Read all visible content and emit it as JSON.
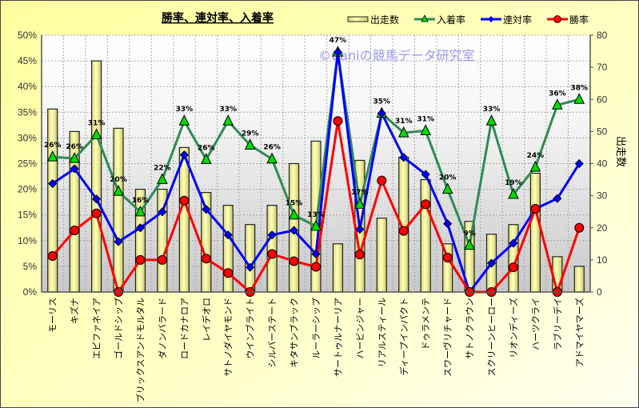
{
  "chart_data": {
    "type": "bar+line",
    "title": "勝率、連対率、入着率",
    "watermark": "©Caniの競馬データ研究室",
    "y_left": {
      "ylim": [
        0,
        50
      ],
      "ticks": [
        "0%",
        "5%",
        "10%",
        "15%",
        "20%",
        "25%",
        "30%",
        "35%",
        "40%",
        "45%",
        "50%"
      ]
    },
    "y_right": {
      "label": "出走数",
      "ylim": [
        0,
        80
      ],
      "ticks": [
        "0",
        "10",
        "20",
        "30",
        "40",
        "50",
        "60",
        "70",
        "80"
      ]
    },
    "grid": true,
    "legend_position": "top-right",
    "categories": [
      "モーリス",
      "キズナ",
      "エピファネイア",
      "ゴールドシップ",
      "ブリックスアンドモルタル",
      "ダノンバラード",
      "ロードカナロア",
      "レイデオロ",
      "サトノダイヤモンド",
      "ウインブライト",
      "シルバーステート",
      "キタサンブラック",
      "ルーラーシップ",
      "サートゥルナーリア",
      "ハービンジャー",
      "リアルスティール",
      "ディープインパクト",
      "ドゥラメンテ",
      "スワーヴリチャード",
      "サトノクラウン",
      "スクリーンヒーロー",
      "リオンディーズ",
      "ハーツクライ",
      "ラブリーデイ",
      "アドマイヤマーズ"
    ],
    "series": [
      {
        "name": "出走数",
        "type": "bar",
        "axis": "right",
        "color": "#f0f090",
        "values": [
          57,
          50,
          72,
          51,
          32,
          32,
          45,
          31,
          27,
          21,
          27,
          40,
          47,
          15,
          41,
          23,
          42,
          35,
          15,
          22,
          18,
          21,
          37,
          11,
          8
        ]
      },
      {
        "name": "入着率",
        "type": "line",
        "axis": "left",
        "color": "#2e8b57",
        "marker": "triangle",
        "marker_color": "#00dd00",
        "values": [
          26.3,
          26.0,
          30.6,
          19.6,
          15.6,
          21.9,
          33.3,
          25.8,
          33.3,
          28.6,
          25.9,
          15.0,
          12.8,
          46.7,
          17.1,
          34.8,
          31.0,
          31.4,
          20.0,
          9.1,
          33.3,
          19.0,
          24.3,
          36.4,
          37.5
        ],
        "labels": [
          "26%",
          "26%",
          "31%",
          "20%",
          "16%",
          "22%",
          "33%",
          "26%",
          "33%",
          "29%",
          "26%",
          "15%",
          "13%",
          "47%",
          "17%",
          "35%",
          "31%",
          "31%",
          "20%",
          "9%",
          "33%",
          "19%",
          "24%",
          "36%",
          "38%"
        ]
      },
      {
        "name": "連対率",
        "type": "line",
        "axis": "left",
        "color": "#0000ff",
        "marker": "diamond",
        "values": [
          21.1,
          24.0,
          18.1,
          9.8,
          12.5,
          15.6,
          26.7,
          16.1,
          11.1,
          4.8,
          11.1,
          12.0,
          7.4,
          46.7,
          12.2,
          34.8,
          26.2,
          22.9,
          13.3,
          0,
          5.6,
          9.5,
          16.2,
          18.2,
          25.0
        ]
      },
      {
        "name": "勝率",
        "type": "line",
        "axis": "left",
        "color": "#ff0000",
        "marker": "circle",
        "values": [
          7.0,
          12.0,
          15.3,
          0,
          6.25,
          6.25,
          17.8,
          6.5,
          3.7,
          0,
          7.4,
          6.0,
          4.9,
          33.3,
          7.3,
          21.7,
          11.9,
          17.1,
          6.7,
          0,
          0,
          4.8,
          16.2,
          0,
          12.5
        ]
      }
    ]
  }
}
